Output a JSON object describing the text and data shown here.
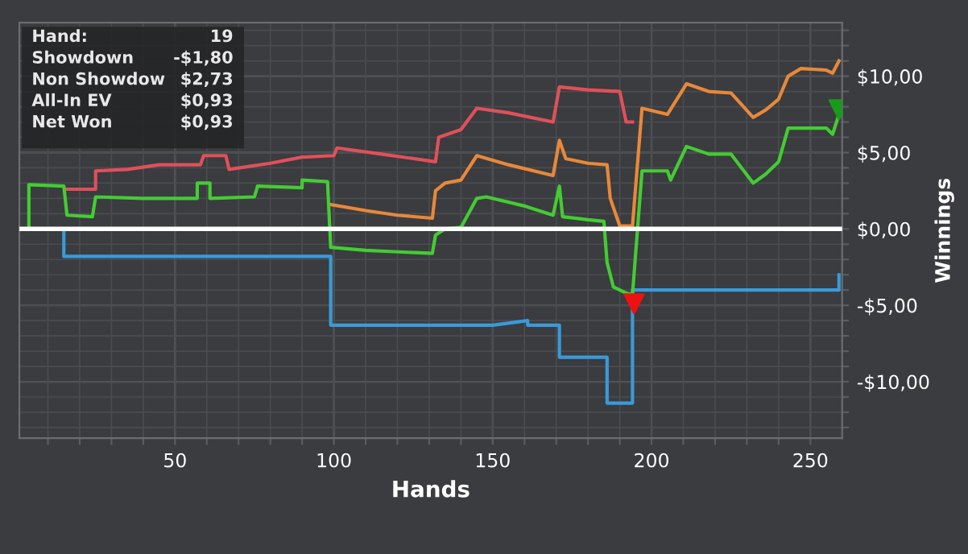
{
  "chart_data": {
    "type": "line",
    "xlabel": "Hands",
    "ylabel": "Winnings",
    "xlim": [
      1,
      260
    ],
    "ylim": [
      -13.7,
      13.5
    ],
    "xticks": [
      {
        "value": 10,
        "label": null
      },
      {
        "value": 20,
        "label": null
      },
      {
        "value": 30,
        "label": null
      },
      {
        "value": 40,
        "label": null
      },
      50,
      {
        "value": 60,
        "label": null
      },
      {
        "value": 70,
        "label": null
      },
      {
        "value": 80,
        "label": null
      },
      {
        "value": 90,
        "label": null
      },
      100,
      {
        "value": 110,
        "label": null
      },
      {
        "value": 120,
        "label": null
      },
      {
        "value": 130,
        "label": null
      },
      {
        "value": 140,
        "label": null
      },
      150,
      {
        "value": 160,
        "label": null
      },
      {
        "value": 170,
        "label": null
      },
      {
        "value": 180,
        "label": null
      },
      {
        "value": 190,
        "label": null
      },
      200,
      {
        "value": 210,
        "label": null
      },
      {
        "value": 220,
        "label": null
      },
      {
        "value": 230,
        "label": null
      },
      {
        "value": 240,
        "label": null
      },
      250
    ],
    "yticks": [
      {
        "value": -13,
        "label": null
      },
      {
        "value": -12,
        "label": null
      },
      {
        "value": -11,
        "label": null
      },
      {
        "value": -10,
        "label": "-$10,00"
      },
      {
        "value": -9,
        "label": null
      },
      {
        "value": -8,
        "label": null
      },
      {
        "value": -7,
        "label": null
      },
      {
        "value": -6,
        "label": null
      },
      {
        "value": -5,
        "label": "-$5,00"
      },
      {
        "value": -4,
        "label": null
      },
      {
        "value": -3,
        "label": null
      },
      {
        "value": -2,
        "label": null
      },
      {
        "value": -1,
        "label": null
      },
      {
        "value": 0,
        "label": "$0,00"
      },
      {
        "value": 1,
        "label": null
      },
      {
        "value": 2,
        "label": null
      },
      {
        "value": 3,
        "label": null
      },
      {
        "value": 4,
        "label": null
      },
      {
        "value": 5,
        "label": "$5,00"
      },
      {
        "value": 6,
        "label": null
      },
      {
        "value": 7,
        "label": null
      },
      {
        "value": 8,
        "label": null
      },
      {
        "value": 9,
        "label": null
      },
      {
        "value": 10,
        "label": "$10,00"
      },
      {
        "value": 11,
        "label": null
      },
      {
        "value": 12,
        "label": null
      },
      {
        "value": 13,
        "label": null
      }
    ],
    "grid": true,
    "marker": "none",
    "line_style": "solid",
    "ref_lines": [
      {
        "axis": "y",
        "value": 0,
        "label": null,
        "color": "#ffffff"
      }
    ],
    "annotations": [
      "Hand:",
      "19",
      "Showdown",
      "-$1,80",
      "Non Showdow",
      "$2,73",
      "All-In EV",
      "$0,93",
      "Net Won",
      "$0,93"
    ],
    "series": [
      {
        "color": "#3a9ad9",
        "x": [
          1,
          15,
          15,
          99,
          99,
          150,
          161,
          161,
          171,
          171,
          186,
          186,
          194,
          194,
          259,
          259
        ],
        "values": [
          0,
          0,
          -1.8,
          -1.8,
          -6.3,
          -6.3,
          -6.0,
          -6.3,
          -6.3,
          -8.4,
          -8.4,
          -11.4,
          -11.4,
          -4.0,
          -4.0,
          -3.0
        ]
      },
      {
        "color": "#e0505a",
        "x": [
          16,
          25,
          25,
          35,
          45,
          58,
          59,
          66,
          67,
          80,
          90,
          100,
          101,
          115,
          132,
          133,
          140,
          145,
          155,
          169,
          171,
          180,
          190,
          192,
          194
        ],
        "values": [
          2.6,
          2.6,
          3.8,
          3.9,
          4.2,
          4.2,
          4.8,
          4.8,
          3.9,
          4.3,
          4.7,
          4.8,
          5.3,
          4.9,
          4.4,
          6.0,
          6.5,
          7.9,
          7.6,
          7.0,
          9.3,
          9.1,
          9.0,
          7.0,
          7.0
        ]
      },
      {
        "color": "#e8883a",
        "x": [
          99,
          110,
          120,
          131,
          132,
          135,
          140,
          145,
          155,
          169,
          171,
          173,
          180,
          186,
          187,
          190,
          194,
          197,
          205,
          211,
          218,
          225,
          232,
          236,
          240,
          243,
          247,
          255,
          257,
          259
        ],
        "values": [
          1.6,
          1.2,
          0.9,
          0.7,
          2.5,
          3.0,
          3.2,
          4.8,
          4.2,
          3.5,
          5.8,
          4.6,
          4.3,
          4.2,
          2.0,
          0.2,
          0.2,
          7.9,
          7.5,
          9.5,
          9.0,
          8.9,
          7.3,
          7.8,
          8.5,
          10.0,
          10.5,
          10.4,
          10.2,
          11.0
        ]
      },
      {
        "color": "#44cc33",
        "x": [
          1,
          4,
          4,
          15,
          16,
          24,
          25,
          40,
          57,
          57,
          61,
          61,
          75,
          76,
          90,
          90,
          98,
          99,
          110,
          120,
          131,
          132,
          135,
          140,
          145,
          148,
          160,
          169,
          171,
          172,
          180,
          185,
          186,
          188,
          190,
          192,
          194,
          197,
          205,
          206,
          211,
          218,
          225,
          232,
          236,
          240,
          243,
          255,
          257,
          259
        ],
        "values": [
          0,
          0,
          2.9,
          2.8,
          0.9,
          0.8,
          2.1,
          2.0,
          2.0,
          3.0,
          3.0,
          2.0,
          2.1,
          2.8,
          2.7,
          3.2,
          3.1,
          -1.2,
          -1.4,
          -1.5,
          -1.6,
          -0.4,
          0.0,
          0.1,
          2.0,
          2.1,
          1.5,
          0.9,
          2.8,
          0.8,
          0.6,
          0.5,
          -2.2,
          -3.8,
          -4.0,
          -4.2,
          -4.3,
          3.8,
          3.8,
          3.2,
          5.4,
          4.9,
          4.9,
          3.0,
          3.6,
          4.4,
          6.6,
          6.6,
          6.2,
          7.5
        ]
      },
      {
        "type": "scatter",
        "marker": "triangle",
        "color": "#ee1111",
        "x": [
          194.5
        ],
        "values": [
          -4.9
        ]
      },
      {
        "type": "scatter",
        "marker": "triangle",
        "color": "#1a9a1a",
        "x": [
          259
        ],
        "values": [
          7.8
        ]
      }
    ]
  }
}
